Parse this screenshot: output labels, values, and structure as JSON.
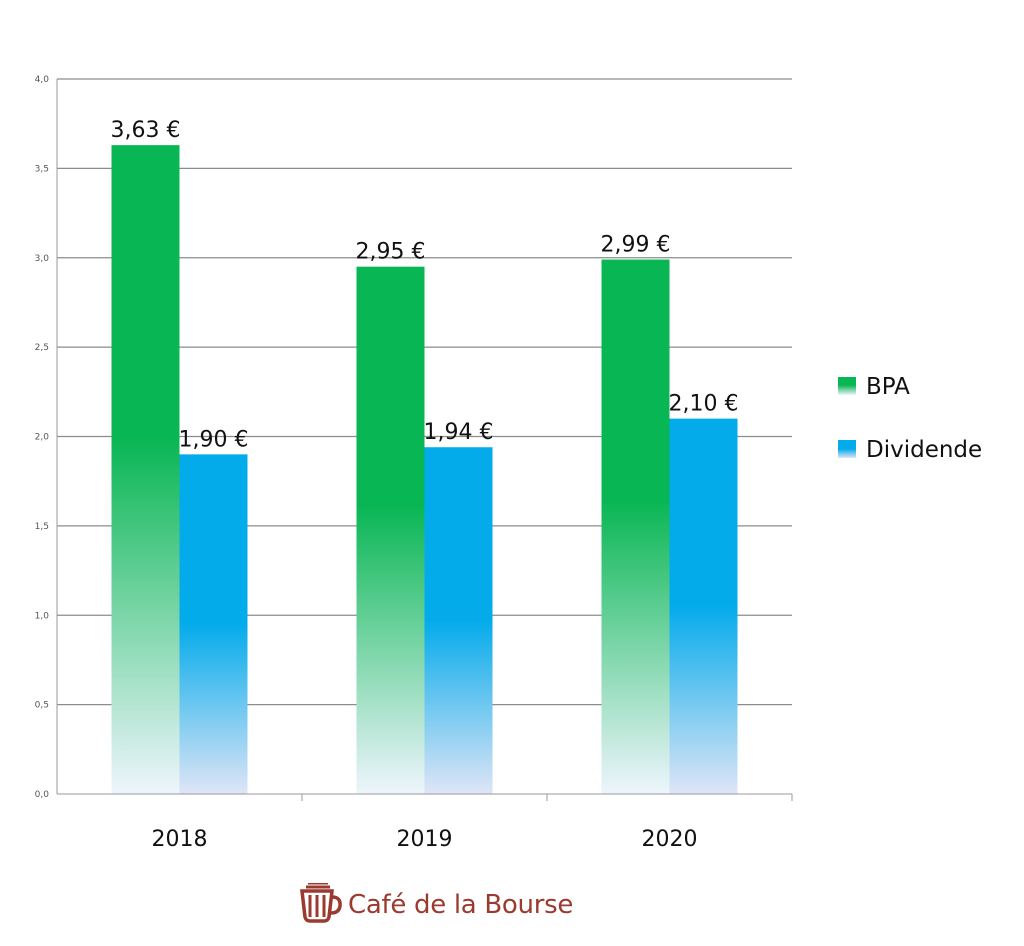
{
  "chart_data": {
    "type": "bar",
    "categories": [
      "2018",
      "2019",
      "2020"
    ],
    "series": [
      {
        "name": "BPA",
        "values": [
          3.63,
          2.95,
          2.99
        ],
        "labels": [
          "3,63 €",
          "2,95 €",
          "2,99 €"
        ],
        "color": "#08b653"
      },
      {
        "name": "Dividende",
        "values": [
          1.9,
          1.94,
          2.1
        ],
        "labels": [
          "1,90 €",
          "1,94 €",
          "2,10 €"
        ],
        "color": "#04abeb"
      }
    ],
    "ylim": [
      0,
      4
    ],
    "yticks": [
      "0,0",
      "0,5",
      "1,0",
      "1,5",
      "2,0",
      "2,5",
      "3,0",
      "3,5",
      "4,0"
    ],
    "grid": true,
    "legend_position": "right",
    "title": "",
    "xlabel": "",
    "ylabel": ""
  },
  "watermark": {
    "text": "Café de la Bourse",
    "icon": "coffee-cup-icon",
    "color": "#9b3a2e"
  }
}
